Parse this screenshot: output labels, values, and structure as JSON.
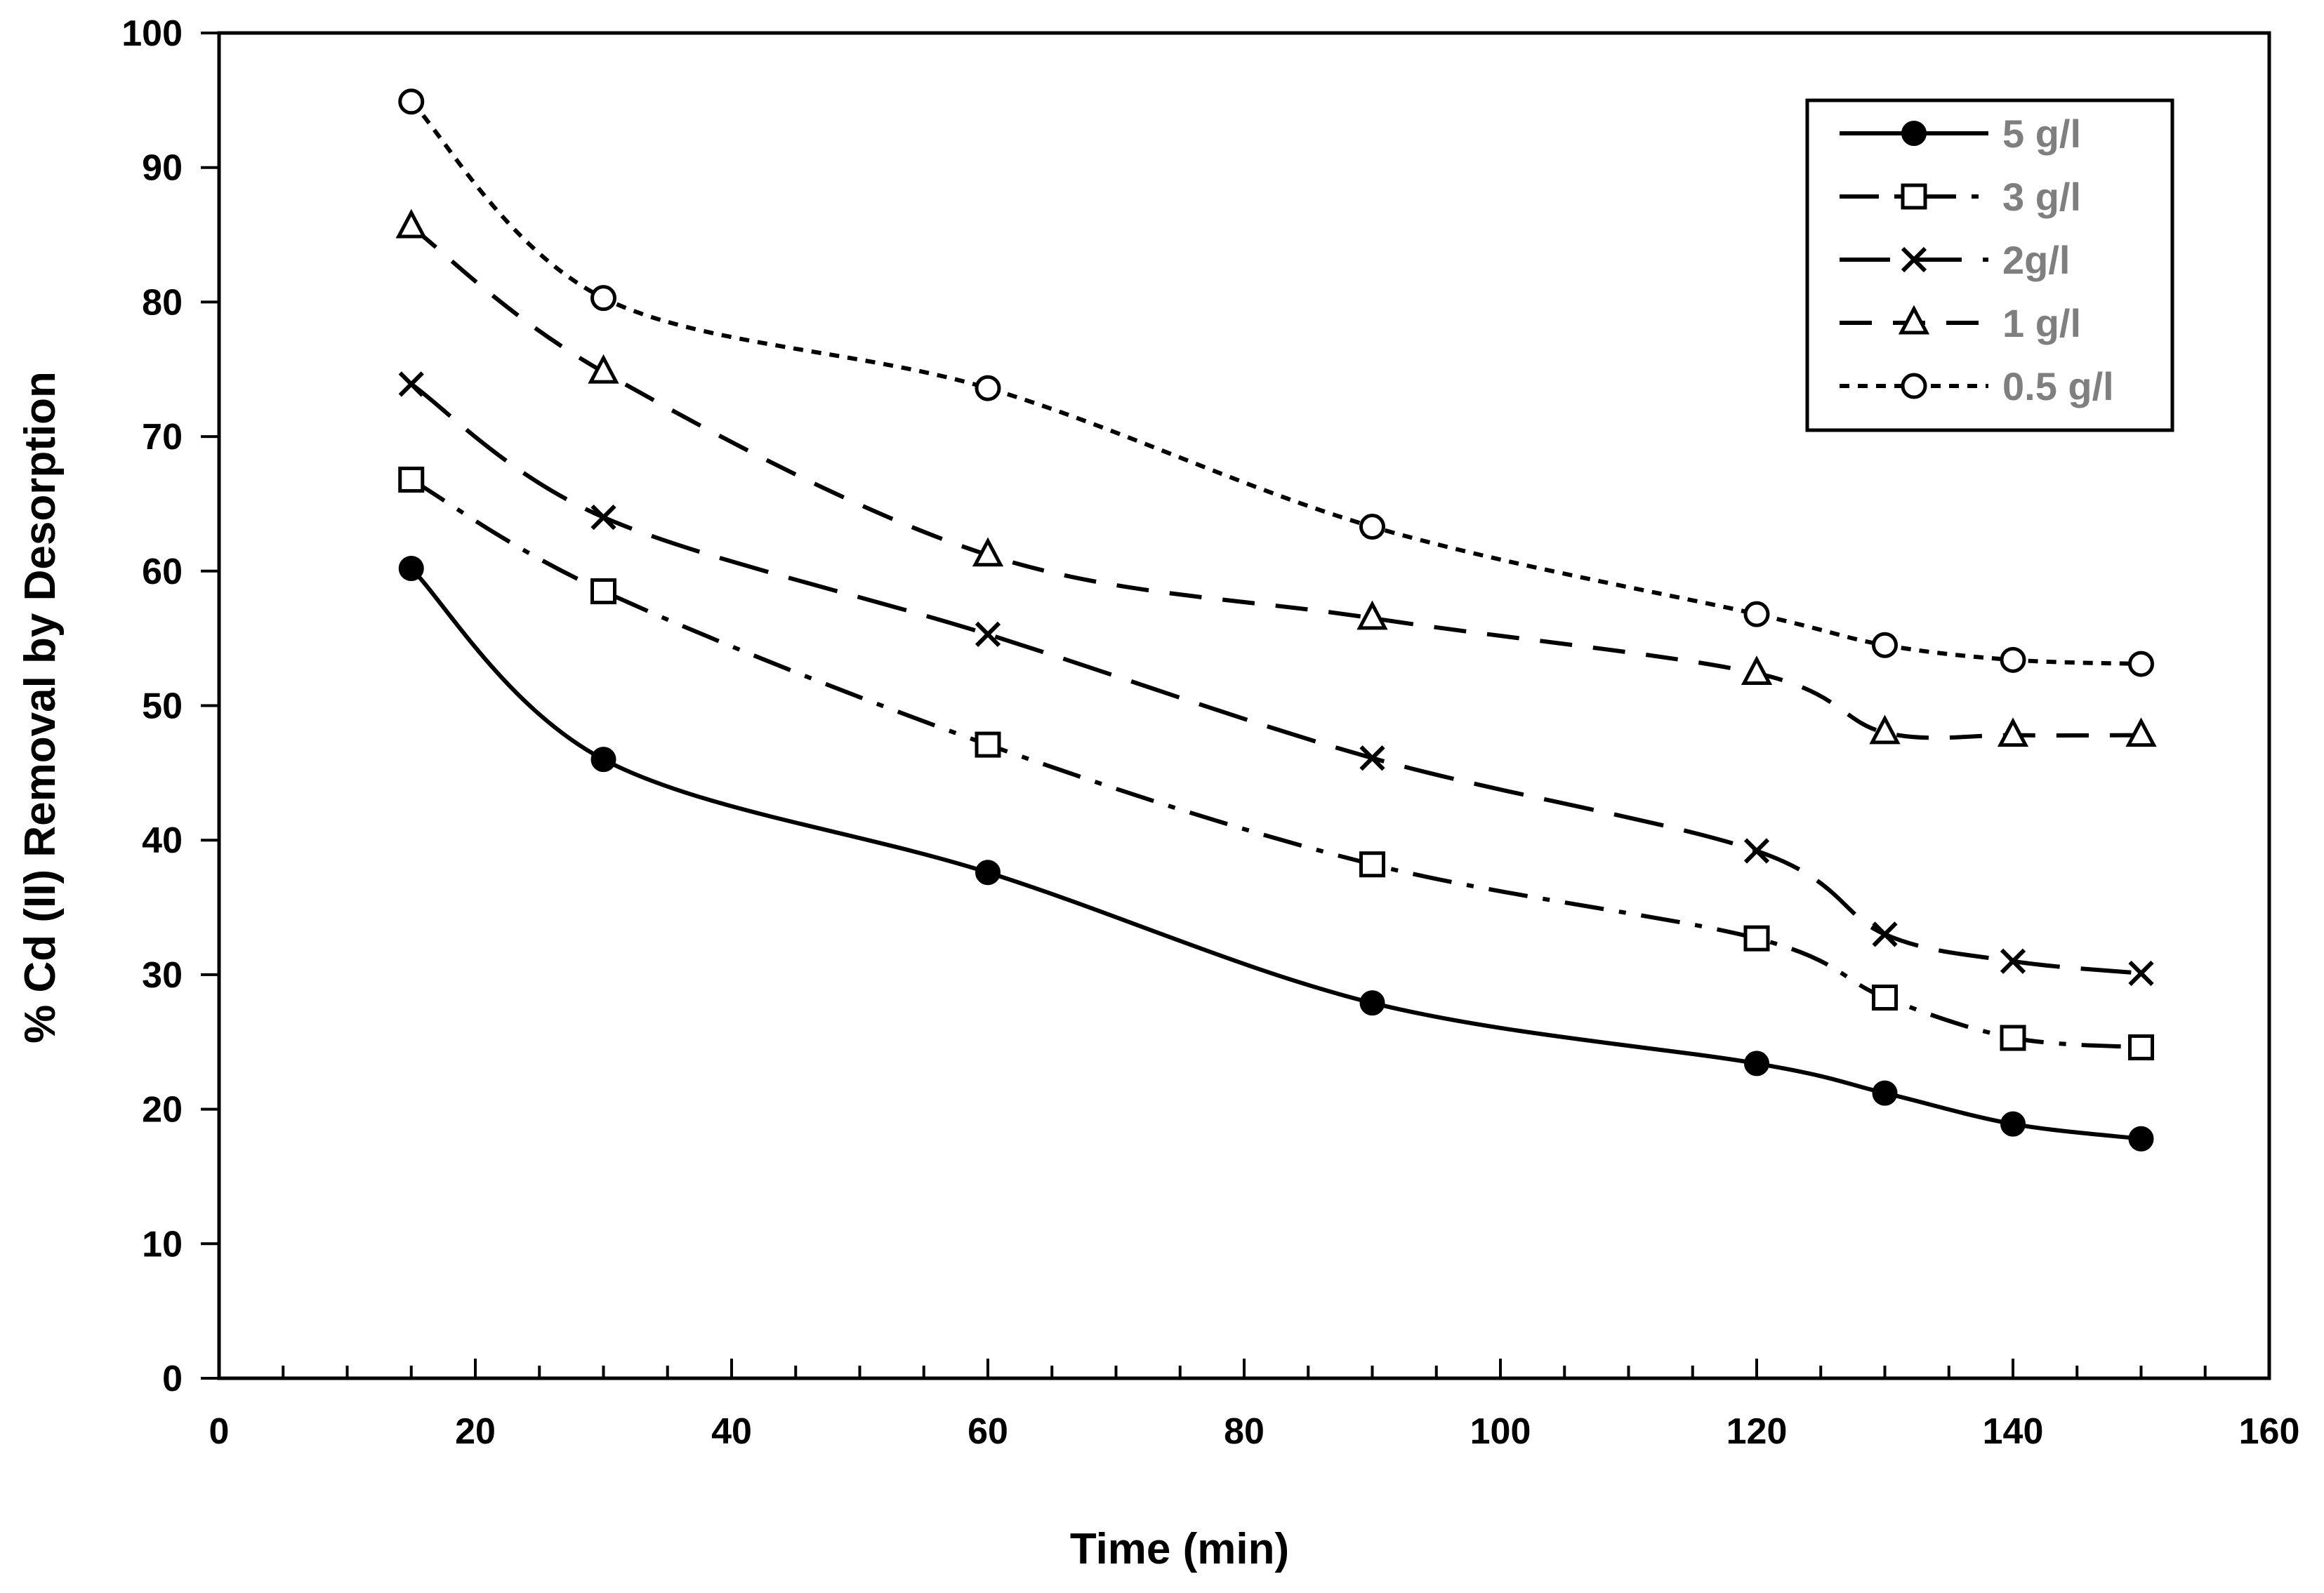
{
  "chart_data": {
    "type": "line",
    "title": "",
    "xlabel": "Time  (min)",
    "ylabel": "% Cd (II) Removal by Desorption",
    "xlim": [
      0,
      160
    ],
    "ylim": [
      0,
      100
    ],
    "x_ticks": [
      "0",
      "20",
      "40",
      "60",
      "80",
      "100",
      "120",
      "140",
      "160"
    ],
    "y_ticks": [
      "0",
      "10",
      "20",
      "30",
      "40",
      "50",
      "60",
      "70",
      "80",
      "90",
      "100"
    ],
    "x_minor_step": 5,
    "grid": false,
    "legend_position": "top-right",
    "x": [
      15,
      30,
      60,
      90,
      120,
      130,
      140,
      150
    ],
    "series": [
      {
        "name": "5 g/l",
        "marker": "filled-circle",
        "line_style": "solid",
        "values": [
          60.2,
          46.0,
          37.6,
          27.9,
          23.4,
          21.2,
          18.9,
          17.8
        ]
      },
      {
        "name": "3 g/l",
        "marker": "square",
        "line_style": "dash-dot",
        "values": [
          66.8,
          58.5,
          47.1,
          38.2,
          32.7,
          28.3,
          25.3,
          24.6
        ]
      },
      {
        "name": "2g/l",
        "marker": "cross",
        "line_style": "long-dash",
        "values": [
          73.9,
          64.0,
          55.3,
          46.1,
          39.2,
          33.0,
          31.0,
          30.1
        ]
      },
      {
        "name": "1 g/l",
        "marker": "triangle",
        "line_style": "dash",
        "values": [
          85.6,
          74.8,
          61.2,
          56.5,
          52.4,
          48.0,
          47.8,
          47.8
        ]
      },
      {
        "name": "0.5 g/l",
        "marker": "open-circle",
        "line_style": "dotted",
        "values": [
          94.9,
          80.3,
          73.6,
          63.3,
          56.8,
          54.5,
          53.4,
          53.1
        ]
      }
    ]
  },
  "colors": {
    "line": "#000000",
    "legend_text": "#7f7f7f",
    "background": "#ffffff"
  }
}
